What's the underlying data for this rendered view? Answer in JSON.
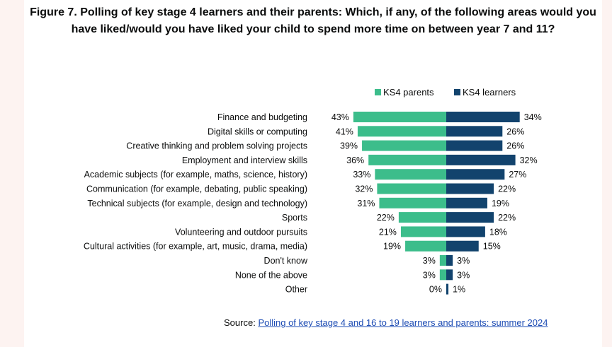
{
  "title": "Figure 7. Polling of key stage 4 learners and their parents: Which, if any, of the following areas would you have liked/would you have liked your child to spend more time on between year 7 and 11?",
  "source": {
    "prefix": "Source:",
    "link_text": "Polling of key stage 4 and 16 to 19 learners and parents: summer 2024"
  },
  "chart_data": {
    "type": "bar",
    "orientation": "horizontal-diverging",
    "categories": [
      "Finance and budgeting",
      "Digital skills or computing",
      "Creative thinking and problem solving projects",
      "Employment and interview skills",
      "Academic subjects (for example, maths, science, history)",
      "Communication (for example, debating, public speaking)",
      "Technical subjects (for example, design and technology)",
      "Sports",
      "Volunteering and outdoor pursuits",
      "Cultural activities (for example, art, music, drama, media)",
      "Don't know",
      "None of the above",
      "Other"
    ],
    "series": [
      {
        "name": "KS4 parents",
        "color": "#3cbd8b",
        "values": [
          43,
          41,
          39,
          36,
          33,
          32,
          31,
          22,
          21,
          19,
          3,
          3,
          0
        ],
        "labels": [
          "43%",
          "41%",
          "39%",
          "36%",
          "33%",
          "32%",
          "31%",
          "22%",
          "21%",
          "19%",
          "3%",
          "3%",
          "0%"
        ]
      },
      {
        "name": "KS4 learners",
        "color": "#12436d",
        "values": [
          34,
          26,
          26,
          32,
          27,
          22,
          19,
          22,
          18,
          15,
          3,
          3,
          1
        ],
        "labels": [
          "34%",
          "26%",
          "26%",
          "32%",
          "27%",
          "22%",
          "19%",
          "22%",
          "18%",
          "15%",
          "3%",
          "3%",
          "1%"
        ]
      }
    ],
    "unit": "%",
    "legend_position": "top",
    "grid": false
  }
}
